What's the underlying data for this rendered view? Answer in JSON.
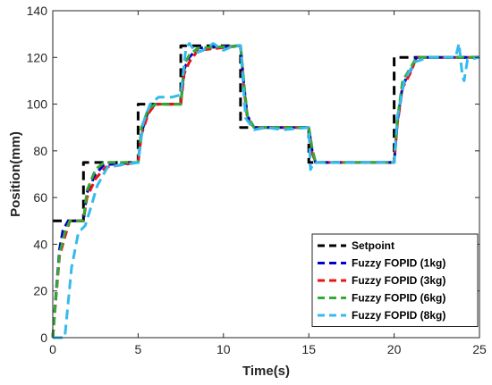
{
  "chart_data": {
    "type": "line",
    "title": "",
    "xlabel": "Time(s)",
    "ylabel": "Position(mm)",
    "xlim": [
      0,
      25
    ],
    "ylim": [
      0,
      140
    ],
    "xticks": [
      0,
      5,
      10,
      15,
      20,
      25
    ],
    "yticks": [
      0,
      20,
      40,
      60,
      80,
      100,
      120,
      140
    ],
    "grid": false,
    "legend_position": "bottom-right",
    "series": [
      {
        "name": "Setpoint",
        "color": "#000000",
        "x": [
          0,
          1.8,
          1.8,
          5.0,
          5.0,
          7.5,
          7.5,
          11.0,
          11.0,
          15.0,
          15.0,
          20.0,
          20.0,
          25.0
        ],
        "y": [
          50,
          50,
          75,
          75,
          100,
          100,
          125,
          125,
          90,
          90,
          75,
          75,
          120,
          120
        ]
      },
      {
        "name": "Fuzzy FOPID (1kg)",
        "color": "#0000cc",
        "x": [
          0,
          0.2,
          0.4,
          0.6,
          0.9,
          1.8,
          2.0,
          2.5,
          3.0,
          5.0,
          5.2,
          5.6,
          6.0,
          7.5,
          7.7,
          8.0,
          8.5,
          11.0,
          11.2,
          11.4,
          11.8,
          15.0,
          15.2,
          15.4,
          20.0,
          20.2,
          20.5,
          21.0,
          21.3,
          25.0
        ],
        "y": [
          0,
          20,
          38,
          46,
          50,
          50,
          62,
          70,
          74,
          75,
          88,
          97,
          100,
          100,
          115,
          120,
          124,
          125,
          108,
          95,
          90,
          90,
          80,
          75,
          75,
          93,
          108,
          115,
          120,
          120
        ]
      },
      {
        "name": "Fuzzy FOPID (3kg)",
        "color": "#ee1111",
        "x": [
          0,
          0.2,
          0.4,
          0.7,
          1.0,
          1.8,
          2.0,
          2.5,
          3.1,
          5.0,
          5.2,
          5.6,
          6.0,
          7.5,
          7.7,
          8.0,
          8.5,
          11.0,
          11.2,
          11.4,
          11.8,
          15.0,
          15.2,
          15.4,
          20.0,
          20.2,
          20.5,
          21.0,
          21.3,
          25.0
        ],
        "y": [
          0,
          18,
          35,
          43,
          50,
          50,
          60,
          68,
          73,
          75,
          87,
          96,
          100,
          100,
          113,
          118,
          123,
          125,
          107,
          94,
          90,
          90,
          79,
          75,
          75,
          92,
          107,
          114,
          120,
          120
        ]
      },
      {
        "name": "Fuzzy FOPID (6kg)",
        "color": "#33aa33",
        "x": [
          0,
          0.2,
          0.4,
          0.7,
          1.0,
          1.8,
          2.0,
          2.5,
          3.0,
          5.0,
          5.2,
          5.6,
          6.0,
          7.5,
          7.7,
          8.0,
          8.5,
          11.0,
          11.2,
          11.4,
          11.8,
          15.0,
          15.2,
          15.4,
          20.0,
          20.2,
          20.5,
          21.0,
          21.3,
          25.0
        ],
        "y": [
          0,
          19,
          36,
          45,
          50,
          50,
          63,
          72,
          75,
          75,
          90,
          98,
          100,
          100,
          117,
          121,
          124,
          125,
          109,
          95,
          90,
          90,
          81,
          75,
          75,
          94,
          110,
          116,
          120,
          120
        ]
      },
      {
        "name": "Fuzzy FOPID (8kg)",
        "color": "#33bbee",
        "x": [
          0,
          0.7,
          1.1,
          1.5,
          1.9,
          2.2,
          2.6,
          3.2,
          4.0,
          5.0,
          5.3,
          5.7,
          6.2,
          7.0,
          7.5,
          7.8,
          8.0,
          8.4,
          8.8,
          9.4,
          10.0,
          10.6,
          11.0,
          11.3,
          11.8,
          12.5,
          13.5,
          15.0,
          15.1,
          15.3,
          16.0,
          20.0,
          20.2,
          20.6,
          21.2,
          22.0,
          23.6,
          23.8,
          24.0,
          24.1,
          24.3,
          25.0
        ],
        "y": [
          0,
          0,
          30,
          45,
          48,
          55,
          65,
          73,
          74,
          75,
          92,
          100,
          103,
          103,
          104,
          124,
          126,
          122,
          123,
          126,
          123,
          125,
          125,
          94,
          89,
          90,
          89,
          90,
          72,
          75,
          75,
          75,
          95,
          110,
          118,
          120,
          120,
          126,
          112,
          110,
          119,
          120
        ]
      }
    ]
  }
}
